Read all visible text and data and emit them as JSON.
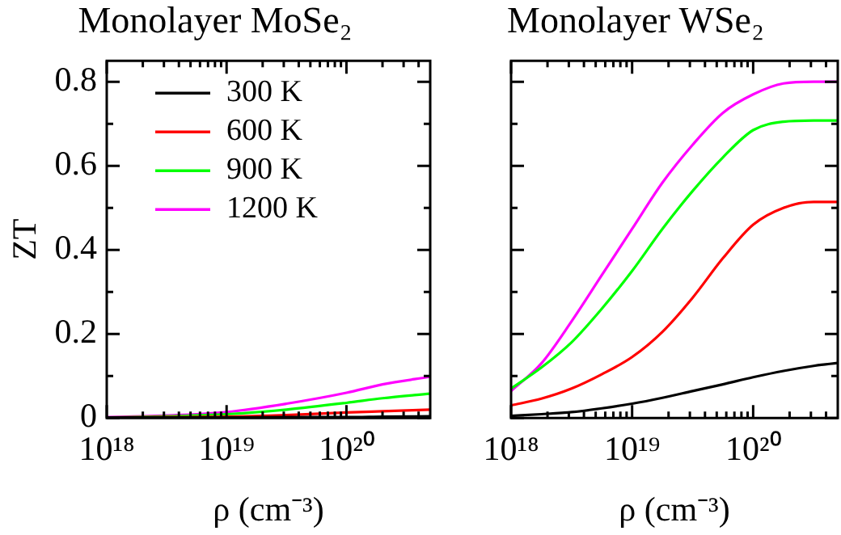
{
  "chart_data": [
    {
      "type": "line",
      "title": "Monolayer MoSe₂",
      "xlabel": "ρ (cm⁻³)",
      "ylabel": "ZT",
      "log": "x",
      "legend": "top left",
      "grid": false,
      "marker": "none",
      "line_style": "solid",
      "x": [
        1e+18,
        3.16e+18,
        1e+19,
        3.16e+19,
        1e+20,
        2e+20,
        5e+20
      ],
      "xlim": [
        1e+18,
        5e+20
      ],
      "xticks": [
        {
          "value": 1e+18,
          "label": "10¹⁸"
        },
        {
          "value": 2e+18,
          "label": null
        },
        {
          "value": 3e+18,
          "label": null
        },
        {
          "value": 4e+18,
          "label": null
        },
        {
          "value": 5e+18,
          "label": null
        },
        {
          "value": 6e+18,
          "label": null
        },
        {
          "value": 7e+18,
          "label": null
        },
        {
          "value": 8e+18,
          "label": null
        },
        {
          "value": 9e+18,
          "label": null
        },
        {
          "value": 1e+19,
          "label": "10¹⁹"
        },
        {
          "value": 2e+19,
          "label": null
        },
        {
          "value": 3e+19,
          "label": null
        },
        {
          "value": 4e+19,
          "label": null
        },
        {
          "value": 5e+19,
          "label": null
        },
        {
          "value": 6e+19,
          "label": null
        },
        {
          "value": 7e+19,
          "label": null
        },
        {
          "value": 8e+19,
          "label": null
        },
        {
          "value": 9e+19,
          "label": null
        },
        {
          "value": 1e+20,
          "label": "10²⁰"
        },
        {
          "value": 2e+20,
          "label": null
        },
        {
          "value": 3e+20,
          "label": null
        },
        {
          "value": 4e+20,
          "label": null
        }
      ],
      "ylim": [
        0,
        0.85
      ],
      "yticks": [
        0,
        {
          "value": 0.1,
          "label": null
        },
        0.2,
        {
          "value": 0.3,
          "label": null
        },
        0.4,
        {
          "value": 0.5,
          "label": null
        },
        0.6,
        {
          "value": 0.7,
          "label": null
        },
        0.8
      ],
      "series": [
        {
          "name": "300 K",
          "color": "#000000",
          "values": [
            0.001,
            0.001,
            0.001,
            0.002,
            0.002,
            0.003,
            0.004
          ]
        },
        {
          "name": "600 K",
          "color": "#ff0000",
          "values": [
            0.001,
            0.002,
            0.003,
            0.007,
            0.013,
            0.016,
            0.02
          ]
        },
        {
          "name": "900 K",
          "color": "#00ff00",
          "values": [
            0.001,
            0.004,
            0.009,
            0.02,
            0.036,
            0.047,
            0.058
          ]
        },
        {
          "name": "1200 K",
          "color": "#ff00ff",
          "values": [
            0.002,
            0.006,
            0.014,
            0.034,
            0.06,
            0.08,
            0.098
          ]
        }
      ]
    },
    {
      "type": "line",
      "title": "Monolayer WSe₂",
      "xlabel": "ρ (cm⁻³)",
      "log": "x",
      "legend": false,
      "grid": false,
      "marker": "none",
      "line_style": "solid",
      "tick_labels": "x",
      "x": [
        1e+18,
        1.78e+18,
        3.16e+18,
        5.62e+18,
        1e+19,
        1.78e+19,
        3.16e+19,
        5.62e+19,
        1e+20,
        1.78e+20,
        3.16e+20,
        5e+20
      ],
      "xlim": [
        1e+18,
        5e+20
      ],
      "xticks": [
        {
          "value": 1e+18,
          "label": "10¹⁸"
        },
        {
          "value": 2e+18,
          "label": null
        },
        {
          "value": 3e+18,
          "label": null
        },
        {
          "value": 4e+18,
          "label": null
        },
        {
          "value": 5e+18,
          "label": null
        },
        {
          "value": 6e+18,
          "label": null
        },
        {
          "value": 7e+18,
          "label": null
        },
        {
          "value": 8e+18,
          "label": null
        },
        {
          "value": 9e+18,
          "label": null
        },
        {
          "value": 1e+19,
          "label": "10¹⁹"
        },
        {
          "value": 2e+19,
          "label": null
        },
        {
          "value": 3e+19,
          "label": null
        },
        {
          "value": 4e+19,
          "label": null
        },
        {
          "value": 5e+19,
          "label": null
        },
        {
          "value": 6e+19,
          "label": null
        },
        {
          "value": 7e+19,
          "label": null
        },
        {
          "value": 8e+19,
          "label": null
        },
        {
          "value": 9e+19,
          "label": null
        },
        {
          "value": 1e+20,
          "label": "10²⁰"
        },
        {
          "value": 2e+20,
          "label": null
        },
        {
          "value": 3e+20,
          "label": null
        },
        {
          "value": 4e+20,
          "label": null
        }
      ],
      "ylim": [
        0,
        0.85
      ],
      "yticks": [
        0,
        {
          "value": 0.1,
          "label": null
        },
        0.2,
        {
          "value": 0.3,
          "label": null
        },
        0.4,
        {
          "value": 0.5,
          "label": null
        },
        0.6,
        {
          "value": 0.7,
          "label": null
        },
        0.8
      ],
      "series": [
        {
          "color": "#000000",
          "values": [
            0.005,
            0.009,
            0.014,
            0.023,
            0.034,
            0.048,
            0.064,
            0.08,
            0.097,
            0.112,
            0.124,
            0.131
          ]
        },
        {
          "color": "#ff0000",
          "values": [
            0.03,
            0.046,
            0.07,
            0.104,
            0.145,
            0.205,
            0.286,
            0.38,
            0.46,
            0.5,
            0.514,
            0.514
          ]
        },
        {
          "color": "#00ff00",
          "values": [
            0.07,
            0.12,
            0.18,
            0.26,
            0.35,
            0.45,
            0.54,
            0.62,
            0.685,
            0.705,
            0.708,
            0.708
          ]
        },
        {
          "color": "#ff00ff",
          "values": [
            0.064,
            0.13,
            0.23,
            0.34,
            0.45,
            0.56,
            0.65,
            0.726,
            0.77,
            0.796,
            0.8,
            0.8
          ]
        }
      ]
    }
  ]
}
